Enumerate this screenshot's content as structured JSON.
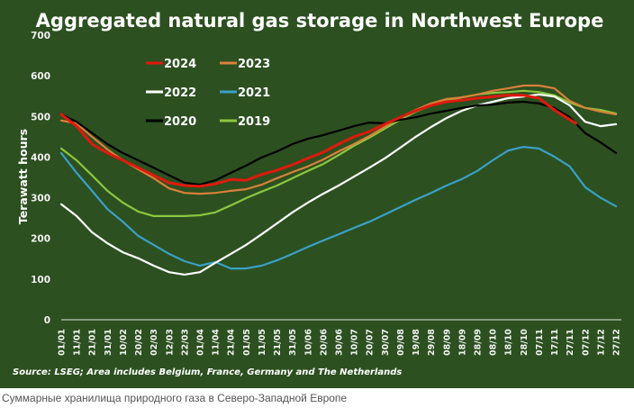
{
  "caption": "Суммарные хранилища природного газа в Северо-Западной Европе",
  "colors": {
    "background": "#2c5020",
    "axis": "#9fb59a"
  },
  "chart_data": {
    "type": "line",
    "title": "Aggregated natural gas storage in Northwest Europe",
    "xlabel": "",
    "ylabel": "Terawatt hours",
    "ylim": [
      0,
      700
    ],
    "yticks": [
      "0",
      "100",
      "200",
      "300",
      "400",
      "500",
      "600",
      "700"
    ],
    "ytick_values": [
      0,
      100,
      200,
      300,
      400,
      500,
      600,
      700
    ],
    "grid": false,
    "legend_position": "top-left",
    "source": "Source: LSEG; Area includes Belgium, France, Germany and The Netherlands",
    "categories": [
      "01/01",
      "11/01",
      "21/01",
      "31/01",
      "10/02",
      "20/02",
      "02/03",
      "12/03",
      "22/03",
      "01/04",
      "11/04",
      "21/04",
      "01/05",
      "11/05",
      "21/05",
      "31/05",
      "10/06",
      "20/06",
      "30/06",
      "10/07",
      "20/07",
      "30/07",
      "09/08",
      "19/08",
      "29/08",
      "08/09",
      "18/09",
      "28/09",
      "08/10",
      "18/10",
      "28/10",
      "07/11",
      "17/11",
      "27/11",
      "07/12",
      "17/12",
      "27/12"
    ],
    "x_days": [
      0,
      10,
      20,
      30,
      40,
      50,
      60,
      70,
      80,
      90,
      100,
      110,
      120,
      130,
      140,
      150,
      160,
      170,
      180,
      190,
      200,
      210,
      220,
      230,
      240,
      250,
      260,
      270,
      280,
      290,
      300,
      310,
      320,
      330,
      340,
      350,
      360
    ],
    "series": [
      {
        "name": "2024",
        "color": "#e0190e",
        "x": [
          0,
          10,
          20,
          30,
          40,
          50,
          60,
          70,
          80,
          90,
          100,
          110,
          120,
          130,
          140,
          150,
          160,
          170,
          180,
          190,
          200,
          210,
          220,
          230,
          240,
          250,
          260,
          270,
          280,
          290,
          300,
          310,
          320,
          330,
          334
        ],
        "values": [
          505,
          476,
          432,
          410,
          392,
          374,
          355,
          337,
          330,
          328,
          334,
          345,
          343,
          357,
          368,
          381,
          397,
          412,
          432,
          450,
          463,
          481,
          498,
          514,
          527,
          536,
          540,
          545,
          549,
          552,
          552,
          545,
          516,
          492,
          483
        ]
      },
      {
        "name": "2023",
        "color": "#d9803a",
        "x": [
          0,
          10,
          20,
          30,
          40,
          50,
          60,
          70,
          80,
          90,
          100,
          110,
          120,
          130,
          140,
          150,
          160,
          170,
          180,
          190,
          200,
          210,
          220,
          230,
          240,
          250,
          260,
          270,
          280,
          290,
          300,
          310,
          320,
          330,
          340,
          350,
          360
        ],
        "values": [
          490,
          483,
          450,
          419,
          392,
          370,
          348,
          323,
          312,
          310,
          312,
          317,
          321,
          332,
          348,
          363,
          377,
          394,
          414,
          432,
          452,
          474,
          498,
          516,
          532,
          543,
          547,
          554,
          563,
          569,
          576,
          576,
          569,
          538,
          521,
          512,
          505
        ]
      },
      {
        "name": "2022",
        "color": "#ffffff",
        "x": [
          0,
          10,
          20,
          30,
          40,
          50,
          60,
          70,
          80,
          90,
          100,
          110,
          120,
          130,
          140,
          150,
          160,
          170,
          180,
          190,
          200,
          210,
          220,
          230,
          240,
          250,
          260,
          270,
          280,
          290,
          300,
          310,
          320,
          330,
          340,
          350,
          360
        ],
        "values": [
          284,
          255,
          215,
          188,
          166,
          151,
          133,
          117,
          111,
          117,
          140,
          162,
          184,
          210,
          237,
          264,
          288,
          310,
          330,
          352,
          374,
          397,
          423,
          450,
          474,
          496,
          514,
          527,
          536,
          545,
          549,
          554,
          549,
          527,
          487,
          476,
          481
        ]
      },
      {
        "name": "2021",
        "color": "#3aa0c8",
        "x": [
          0,
          10,
          20,
          30,
          40,
          50,
          60,
          70,
          80,
          90,
          100,
          110,
          120,
          130,
          140,
          150,
          160,
          170,
          180,
          190,
          200,
          210,
          220,
          230,
          240,
          250,
          260,
          270,
          280,
          290,
          300,
          310,
          320,
          330,
          340,
          350,
          360
        ],
        "values": [
          410,
          361,
          317,
          272,
          241,
          206,
          184,
          162,
          144,
          133,
          142,
          126,
          126,
          133,
          146,
          162,
          179,
          195,
          210,
          226,
          241,
          259,
          277,
          295,
          312,
          330,
          346,
          366,
          392,
          416,
          425,
          421,
          401,
          377,
          326,
          300,
          279
        ]
      },
      {
        "name": "2020",
        "color": "#000000",
        "x": [
          0,
          10,
          20,
          30,
          40,
          50,
          60,
          70,
          80,
          90,
          100,
          110,
          120,
          130,
          140,
          150,
          160,
          170,
          180,
          190,
          200,
          210,
          220,
          230,
          240,
          250,
          260,
          270,
          280,
          290,
          300,
          310,
          320,
          330,
          340,
          350,
          360
        ],
        "values": [
          505,
          487,
          459,
          432,
          410,
          392,
          374,
          355,
          337,
          332,
          343,
          361,
          379,
          399,
          414,
          432,
          445,
          454,
          465,
          476,
          485,
          483,
          492,
          498,
          507,
          514,
          521,
          527,
          529,
          534,
          536,
          532,
          521,
          498,
          459,
          436,
          410
        ]
      },
      {
        "name": "2019",
        "color": "#8cc63f",
        "x": [
          0,
          10,
          20,
          30,
          40,
          50,
          60,
          70,
          80,
          90,
          100,
          110,
          120,
          130,
          140,
          150,
          160,
          170,
          180,
          190,
          200,
          210,
          220,
          230,
          240,
          250,
          260,
          270,
          280,
          290,
          300,
          310,
          320,
          330,
          340,
          350,
          360
        ],
        "values": [
          421,
          392,
          355,
          317,
          288,
          266,
          255,
          255,
          255,
          257,
          264,
          281,
          299,
          315,
          330,
          348,
          366,
          383,
          405,
          428,
          448,
          470,
          492,
          512,
          527,
          538,
          547,
          554,
          558,
          560,
          563,
          560,
          552,
          534,
          521,
          516,
          507
        ]
      }
    ]
  }
}
